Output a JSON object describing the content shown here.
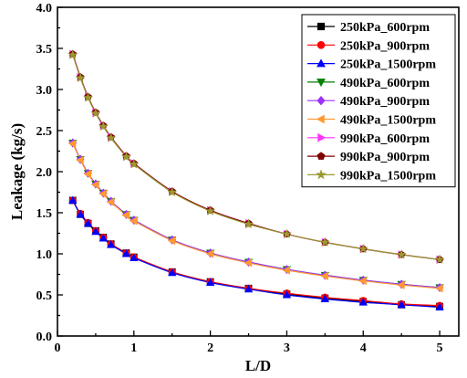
{
  "chart_data": {
    "type": "line",
    "xlabel": "L/D",
    "ylabel": "Leakage (kg/s)",
    "xlim": [
      0,
      5.25
    ],
    "ylim": [
      0,
      4.0
    ],
    "xticks": [
      "0",
      "1",
      "2",
      "3",
      "4",
      "5"
    ],
    "yticks": [
      "0.0",
      "0.5",
      "1.0",
      "1.5",
      "2.0",
      "2.5",
      "3.0",
      "3.5",
      "4.0"
    ],
    "legend_position": "top-right",
    "grid": false,
    "x": [
      0.2,
      0.3,
      0.4,
      0.5,
      0.6,
      0.7,
      0.9,
      1.0,
      1.5,
      2.0,
      2.5,
      3.0,
      3.5,
      4.0,
      4.5,
      5.0
    ],
    "series": [
      {
        "name": "250kPa_600rpm",
        "color": "#000000",
        "marker": "square",
        "values": [
          1.65,
          1.48,
          1.37,
          1.28,
          1.2,
          1.12,
          1.01,
          0.96,
          0.78,
          0.66,
          0.58,
          0.51,
          0.46,
          0.42,
          0.38,
          0.36
        ]
      },
      {
        "name": "250kPa_900rpm",
        "color": "#ff0000",
        "marker": "circle",
        "values": [
          1.65,
          1.49,
          1.38,
          1.28,
          1.2,
          1.12,
          1.01,
          0.96,
          0.78,
          0.66,
          0.58,
          0.52,
          0.47,
          0.43,
          0.39,
          0.37
        ]
      },
      {
        "name": "250kPa_1500rpm",
        "color": "#0000ff",
        "marker": "triangle-up",
        "values": [
          1.65,
          1.48,
          1.37,
          1.27,
          1.19,
          1.11,
          1.0,
          0.95,
          0.77,
          0.65,
          0.57,
          0.5,
          0.45,
          0.41,
          0.38,
          0.35
        ]
      },
      {
        "name": "490kPa_600rpm",
        "color": "#008000",
        "marker": "triangle-down",
        "values": [
          2.35,
          2.15,
          1.98,
          1.85,
          1.74,
          1.64,
          1.48,
          1.41,
          1.17,
          1.01,
          0.9,
          0.81,
          0.74,
          0.68,
          0.63,
          0.59
        ]
      },
      {
        "name": "490kPa_900rpm",
        "color": "#9b30ff",
        "marker": "diamond",
        "values": [
          2.35,
          2.15,
          1.98,
          1.85,
          1.74,
          1.64,
          1.48,
          1.41,
          1.17,
          1.01,
          0.9,
          0.81,
          0.74,
          0.68,
          0.63,
          0.59
        ]
      },
      {
        "name": "490kPa_1500rpm",
        "color": "#ff9933",
        "marker": "triangle-left",
        "values": [
          2.34,
          2.14,
          1.97,
          1.84,
          1.73,
          1.63,
          1.47,
          1.4,
          1.16,
          1.0,
          0.89,
          0.8,
          0.73,
          0.67,
          0.62,
          0.58
        ]
      },
      {
        "name": "990kPa_600rpm",
        "color": "#ff33ff",
        "marker": "triangle-right",
        "values": [
          3.43,
          3.15,
          2.91,
          2.72,
          2.56,
          2.42,
          2.19,
          2.1,
          1.76,
          1.53,
          1.37,
          1.24,
          1.14,
          1.06,
          0.99,
          0.93
        ]
      },
      {
        "name": "990kPa_900rpm",
        "color": "#800000",
        "marker": "pentagon",
        "values": [
          3.43,
          3.15,
          2.91,
          2.72,
          2.56,
          2.42,
          2.19,
          2.1,
          1.76,
          1.53,
          1.37,
          1.24,
          1.14,
          1.06,
          0.99,
          0.93
        ]
      },
      {
        "name": "990kPa_1500rpm",
        "color": "#999933",
        "marker": "star",
        "values": [
          3.42,
          3.14,
          2.9,
          2.71,
          2.55,
          2.41,
          2.18,
          2.09,
          1.75,
          1.52,
          1.36,
          1.24,
          1.14,
          1.06,
          0.99,
          0.93
        ]
      }
    ]
  }
}
